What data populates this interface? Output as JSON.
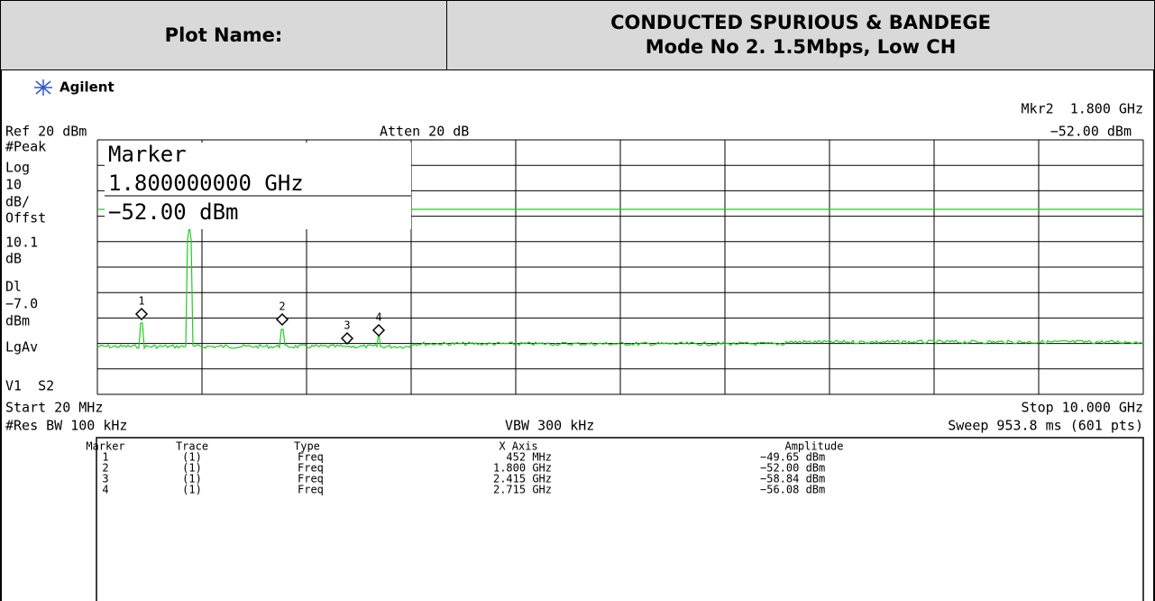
{
  "header": {
    "label": "Plot Name:",
    "title_lines": [
      "CONDUCTED SPURIOUS & BANDEGE",
      "Mode No 2. 1.5Mbps, Low CH"
    ]
  },
  "screen": {
    "brand": "Agilent",
    "top_right": [
      "Mkr2  1.800 GHz",
      "−52.00 dBm"
    ],
    "ref": "Ref 20 dBm",
    "atten": "Atten 20 dB",
    "left_labels": [
      "#Peak",
      "Log",
      "10",
      "dB/",
      "Offst",
      "10.1",
      "dB",
      "Dl",
      "−7.0",
      "dBm",
      "LgAv",
      "V1  S2"
    ],
    "marker_box": [
      "Marker",
      "1.800000000 GHz",
      "−52.00 dBm"
    ],
    "peak_labels": [
      "1",
      "2",
      "3",
      "4"
    ],
    "start": "Start 20 MHz",
    "stop": "Stop 10.000 GHz",
    "res_bw": "#Res BW 100 kHz",
    "vbw": "VBW 300 kHz",
    "sweep": "Sweep 953.8 ms (601 pts)"
  },
  "table": {
    "columns": [
      "Marker",
      "Trace",
      "Type",
      "X Axis",
      "Amplitude"
    ],
    "rows": [
      [
        "1",
        "(1)",
        "Freq",
        "452 MHz",
        "−49.65 dBm"
      ],
      [
        "2",
        "(1)",
        "Freq",
        "1.800 GHz",
        "−52.00 dBm"
      ],
      [
        "3",
        "(1)",
        "Freq",
        "2.415 GHz",
        "−58.84 dBm"
      ],
      [
        "4",
        "(1)",
        "Freq",
        "2.715 GHz",
        "−56.08 dBm"
      ]
    ]
  }
}
